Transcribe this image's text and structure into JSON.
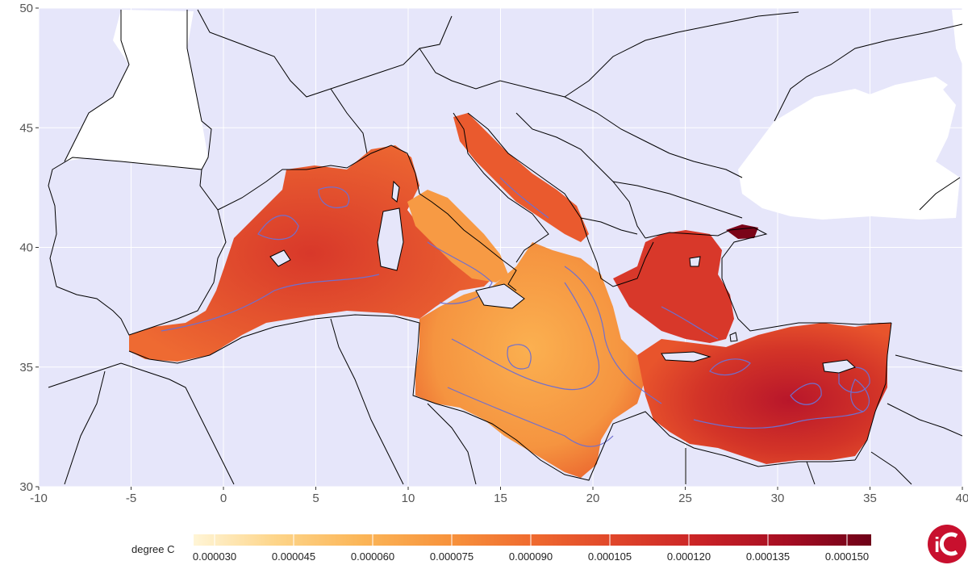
{
  "map": {
    "x_axis": {
      "range": [
        -10,
        40
      ],
      "ticks": [
        "-10",
        "-5",
        "0",
        "5",
        "10",
        "15",
        "20",
        "25",
        "30",
        "35",
        "40"
      ]
    },
    "y_axis": {
      "range": [
        30,
        50
      ],
      "ticks": [
        "30",
        "35",
        "40",
        "45",
        "50"
      ]
    },
    "grid": true,
    "sea_region": "Mediterranean Sea",
    "colors": {
      "panel_background": "#e6e6fa",
      "land": "#ffffff",
      "border_line": "#000000",
      "contour_line": "#6f6fcf",
      "grid_line": "#ffffff"
    }
  },
  "legend": {
    "title": "degree C",
    "placement": "bottom",
    "ticks": [
      "0.000030",
      "0.000045",
      "0.000060",
      "0.000075",
      "0.000090",
      "0.000105",
      "0.000120",
      "0.000135",
      "0.000150"
    ],
    "gradient": [
      "#fff5d6",
      "#fdd58a",
      "#fbb557",
      "#f7923c",
      "#ef6a2f",
      "#e0462a",
      "#c92226",
      "#a40d22",
      "#6e0118"
    ]
  },
  "logo": {
    "name": "logo-icon",
    "color": "#c8102e"
  }
}
